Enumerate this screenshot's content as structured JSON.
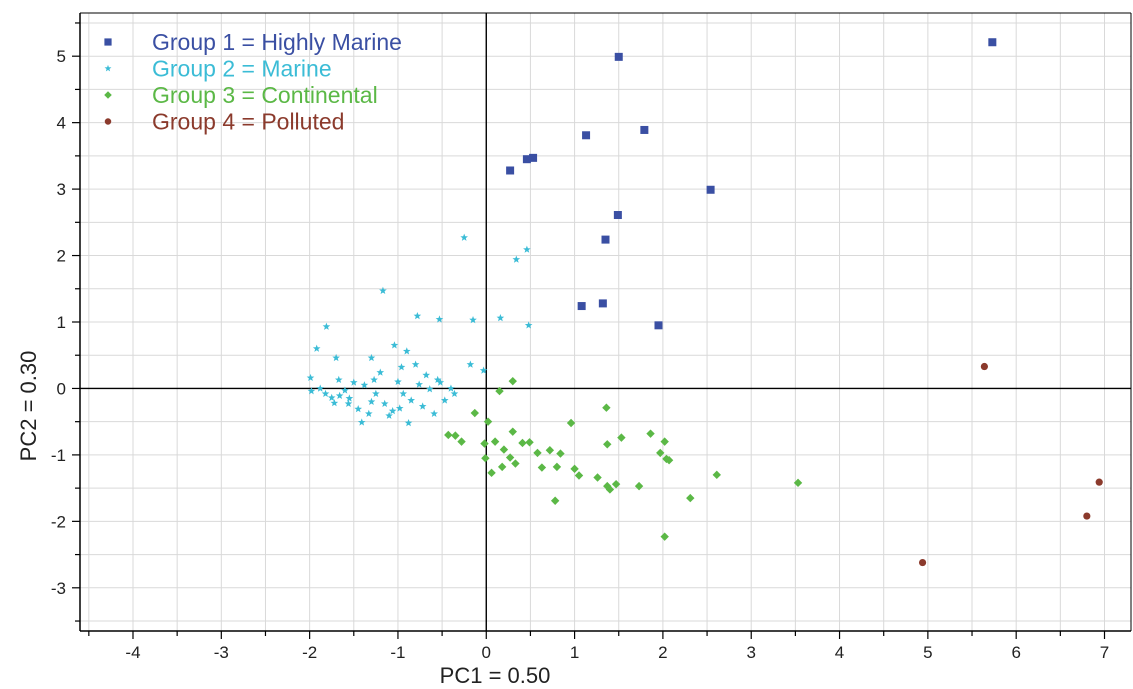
{
  "chart_data": {
    "type": "scatter",
    "title": "",
    "xlabel": "PC1 = 0.50",
    "ylabel": "PC2 = 0.30",
    "xlim": [
      -4.6,
      7.3
    ],
    "ylim": [
      -3.65,
      5.65
    ],
    "x_ticks": [
      -4,
      -3,
      -2,
      -1,
      0,
      1,
      2,
      3,
      4,
      5,
      6,
      7
    ],
    "y_ticks": [
      -3,
      -2,
      -1,
      0,
      1,
      2,
      3,
      4,
      5
    ],
    "grid": true,
    "legend_position": "top-left",
    "series": [
      {
        "name": "Group 1 = Highly Marine",
        "color": "#3a4fa3",
        "marker": "square",
        "points": [
          [
            5.73,
            5.21
          ],
          [
            1.5,
            4.99
          ],
          [
            1.13,
            3.81
          ],
          [
            1.79,
            3.89
          ],
          [
            0.27,
            3.28
          ],
          [
            0.46,
            3.45
          ],
          [
            0.53,
            3.47
          ],
          [
            2.54,
            2.99
          ],
          [
            1.49,
            2.61
          ],
          [
            1.35,
            2.24
          ],
          [
            1.08,
            1.24
          ],
          [
            1.32,
            1.28
          ],
          [
            1.95,
            0.95
          ]
        ]
      },
      {
        "name": "Group 2 = Marine",
        "color": "#3bbcd6",
        "marker": "star",
        "points": [
          [
            -0.25,
            2.27
          ],
          [
            0.46,
            2.09
          ],
          [
            0.34,
            1.94
          ],
          [
            -1.17,
            1.47
          ],
          [
            -0.78,
            1.09
          ],
          [
            -0.53,
            1.04
          ],
          [
            -0.15,
            1.03
          ],
          [
            0.16,
            1.06
          ],
          [
            0.48,
            0.95
          ],
          [
            -1.81,
            0.93
          ],
          [
            -1.92,
            0.6
          ],
          [
            -1.7,
            0.46
          ],
          [
            -1.3,
            0.46
          ],
          [
            -1.04,
            0.65
          ],
          [
            -0.9,
            0.56
          ],
          [
            -0.96,
            0.32
          ],
          [
            -0.8,
            0.36
          ],
          [
            -0.68,
            0.2
          ],
          [
            -0.52,
            0.09
          ],
          [
            -0.18,
            0.36
          ],
          [
            -0.03,
            0.27
          ],
          [
            -1.99,
            0.16
          ],
          [
            -1.88,
            0.0
          ],
          [
            -1.82,
            -0.08
          ],
          [
            -1.75,
            -0.14
          ],
          [
            -1.66,
            -0.11
          ],
          [
            -1.56,
            -0.23
          ],
          [
            -1.45,
            -0.31
          ],
          [
            -1.33,
            -0.38
          ],
          [
            -1.25,
            -0.08
          ],
          [
            -1.15,
            -0.23
          ],
          [
            -1.06,
            -0.34
          ],
          [
            -0.94,
            -0.08
          ],
          [
            -0.85,
            -0.18
          ],
          [
            -0.76,
            0.06
          ],
          [
            -0.64,
            -0.01
          ],
          [
            -0.55,
            0.13
          ],
          [
            -0.47,
            -0.18
          ],
          [
            -0.36,
            -0.08
          ],
          [
            -1.6,
            -0.03
          ],
          [
            -1.5,
            0.09
          ],
          [
            -1.38,
            0.05
          ],
          [
            -1.27,
            0.13
          ],
          [
            -1.2,
            0.24
          ],
          [
            -1.1,
            -0.41
          ],
          [
            -0.98,
            -0.3
          ],
          [
            -0.88,
            -0.52
          ],
          [
            -1.41,
            -0.51
          ],
          [
            -1.55,
            -0.15
          ],
          [
            -1.98,
            -0.04
          ],
          [
            -1.72,
            -0.22
          ],
          [
            -0.59,
            -0.38
          ],
          [
            -0.72,
            -0.27
          ],
          [
            -1.0,
            0.1
          ],
          [
            -1.67,
            0.13
          ],
          [
            -1.3,
            -0.2
          ],
          [
            -0.4,
            0.0
          ]
        ]
      },
      {
        "name": "Group 3 = Continental",
        "color": "#5bb846",
        "marker": "diamond",
        "points": [
          [
            0.3,
            0.11
          ],
          [
            0.15,
            -0.04
          ],
          [
            -0.13,
            -0.37
          ],
          [
            -0.35,
            -0.71
          ],
          [
            -0.28,
            -0.8
          ],
          [
            -0.43,
            -0.7
          ],
          [
            0.02,
            -0.5
          ],
          [
            -0.02,
            -0.83
          ],
          [
            0.1,
            -0.8
          ],
          [
            0.2,
            -0.92
          ],
          [
            -0.01,
            -1.05
          ],
          [
            0.27,
            -1.04
          ],
          [
            0.41,
            -0.82
          ],
          [
            0.49,
            -0.81
          ],
          [
            0.3,
            -0.65
          ],
          [
            0.06,
            -1.27
          ],
          [
            0.18,
            -1.18
          ],
          [
            0.33,
            -1.13
          ],
          [
            0.58,
            -0.97
          ],
          [
            0.72,
            -0.93
          ],
          [
            0.84,
            -0.98
          ],
          [
            0.63,
            -1.19
          ],
          [
            0.8,
            -1.18
          ],
          [
            0.96,
            -0.52
          ],
          [
            1.0,
            -1.21
          ],
          [
            1.05,
            -1.31
          ],
          [
            1.26,
            -1.34
          ],
          [
            1.37,
            -1.47
          ],
          [
            1.47,
            -1.44
          ],
          [
            1.4,
            -1.52
          ],
          [
            1.37,
            -0.84
          ],
          [
            1.36,
            -0.29
          ],
          [
            1.53,
            -0.74
          ],
          [
            1.73,
            -1.47
          ],
          [
            1.86,
            -0.68
          ],
          [
            1.97,
            -0.97
          ],
          [
            2.04,
            -1.06
          ],
          [
            2.07,
            -1.08
          ],
          [
            2.02,
            -0.8
          ],
          [
            2.31,
            -1.65
          ],
          [
            2.61,
            -1.3
          ],
          [
            2.02,
            -2.23
          ],
          [
            0.78,
            -1.69
          ],
          [
            3.53,
            -1.42
          ]
        ]
      },
      {
        "name": "Group 4 = Polluted",
        "color": "#8b3a2c",
        "marker": "circle",
        "points": [
          [
            5.64,
            0.33
          ],
          [
            4.94,
            -2.62
          ],
          [
            6.8,
            -1.92
          ],
          [
            6.94,
            -1.41
          ]
        ]
      }
    ]
  }
}
